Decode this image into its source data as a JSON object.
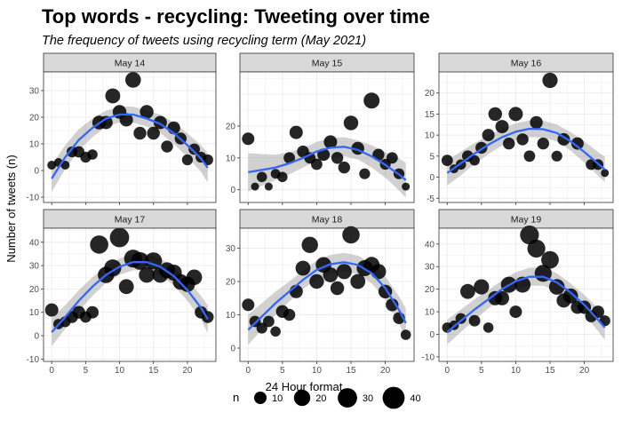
{
  "chart_data": {
    "type": "scatter",
    "title": "Top words - recycling: Tweeting over time",
    "subtitle": "The frequency of tweets using recycling term (May 2021)",
    "xlabel": "24 Hour format",
    "ylabel": "Number of tweets (n)",
    "x_ticks": [
      0,
      5,
      10,
      15,
      20
    ],
    "xlim": [
      -1.2,
      24.2
    ],
    "grid": true,
    "smooth": "loess fit with grey confidence band (blue line)",
    "colors": {
      "points": "#000000",
      "smooth_line": "#3366FF",
      "ribbon": "#999999",
      "strip_bg": "#D9D9D9",
      "grid": "#EBEBEB"
    },
    "legend": {
      "title": "n",
      "position": "bottom",
      "entries": [
        {
          "label": "10",
          "value": 10
        },
        {
          "label": "20",
          "value": 20
        },
        {
          "label": "30",
          "value": 30
        },
        {
          "label": "40",
          "value": 40
        }
      ]
    },
    "panels": [
      {
        "label": "May 14",
        "ylim": [
          -12,
          37
        ],
        "y_ticks": [
          -10,
          0,
          10,
          20,
          30
        ],
        "points": [
          [
            0,
            2
          ],
          [
            1,
            3
          ],
          [
            2,
            2
          ],
          [
            3,
            7
          ],
          [
            4,
            7
          ],
          [
            5,
            5
          ],
          [
            6,
            6
          ],
          [
            7,
            18
          ],
          [
            8,
            18
          ],
          [
            9,
            28
          ],
          [
            10,
            22
          ],
          [
            11,
            19
          ],
          [
            12,
            34
          ],
          [
            13,
            14
          ],
          [
            14,
            22
          ],
          [
            15,
            14
          ],
          [
            16,
            18
          ],
          [
            17,
            9
          ],
          [
            18,
            16
          ],
          [
            19,
            12
          ],
          [
            20,
            4
          ],
          [
            21,
            8
          ],
          [
            22,
            5
          ],
          [
            23,
            4
          ]
        ],
        "smooth": [
          [
            0,
            -3
          ],
          [
            2,
            5
          ],
          [
            4,
            11.5
          ],
          [
            6,
            16
          ],
          [
            8,
            19.5
          ],
          [
            10,
            21
          ],
          [
            12,
            21
          ],
          [
            14,
            19.5
          ],
          [
            16,
            17.5
          ],
          [
            18,
            14
          ],
          [
            20,
            9.5
          ],
          [
            22,
            4.5
          ],
          [
            23,
            1
          ]
        ],
        "band_width": [
          5,
          4.5,
          4,
          3.5,
          3,
          3,
          3,
          3,
          3.5,
          4,
          4.5,
          5,
          5.5
        ]
      },
      {
        "label": "May 15",
        "ylim": [
          -4,
          37
        ],
        "y_ticks": [
          0,
          10,
          20
        ],
        "points": [
          [
            0,
            16
          ],
          [
            1,
            1
          ],
          [
            2,
            4
          ],
          [
            3,
            1
          ],
          [
            4,
            5
          ],
          [
            5,
            4
          ],
          [
            6,
            10
          ],
          [
            7,
            18
          ],
          [
            8,
            12
          ],
          [
            9,
            10
          ],
          [
            10,
            8
          ],
          [
            11,
            11
          ],
          [
            12,
            15
          ],
          [
            13,
            10
          ],
          [
            14,
            7
          ],
          [
            15,
            21
          ],
          [
            16,
            13
          ],
          [
            17,
            5
          ],
          [
            18,
            28
          ],
          [
            19,
            11
          ],
          [
            20,
            8
          ],
          [
            21,
            10
          ],
          [
            22,
            5
          ],
          [
            23,
            1
          ]
        ],
        "smooth": [
          [
            0,
            5.5
          ],
          [
            2,
            6.2
          ],
          [
            4,
            7
          ],
          [
            6,
            8.3
          ],
          [
            8,
            10
          ],
          [
            10,
            12
          ],
          [
            12,
            13.2
          ],
          [
            14,
            13.5
          ],
          [
            16,
            12.5
          ],
          [
            18,
            10.5
          ],
          [
            20,
            7.8
          ],
          [
            22,
            4.8
          ],
          [
            23,
            3
          ]
        ],
        "band_width": [
          6,
          5,
          4,
          3.5,
          3,
          3,
          3,
          3,
          3,
          3.5,
          4,
          5,
          5.5
        ]
      },
      {
        "label": "May 16",
        "ylim": [
          -6,
          25
        ],
        "y_ticks": [
          -5,
          0,
          5,
          10,
          15,
          20
        ],
        "points": [
          [
            0,
            4
          ],
          [
            1,
            2
          ],
          [
            2,
            3
          ],
          [
            3,
            5
          ],
          [
            4,
            4
          ],
          [
            5,
            7
          ],
          [
            6,
            10
          ],
          [
            7,
            15
          ],
          [
            8,
            12
          ],
          [
            9,
            8
          ],
          [
            10,
            15
          ],
          [
            11,
            9
          ],
          [
            12,
            5
          ],
          [
            13,
            13
          ],
          [
            14,
            8
          ],
          [
            15,
            23
          ],
          [
            16,
            5
          ],
          [
            17,
            9
          ],
          [
            19,
            8
          ],
          [
            21,
            3
          ],
          [
            22,
            3
          ],
          [
            23,
            1
          ]
        ],
        "smooth": [
          [
            0,
            1
          ],
          [
            2,
            3.3
          ],
          [
            4,
            5.6
          ],
          [
            6,
            7.7
          ],
          [
            8,
            9.5
          ],
          [
            10,
            10.8
          ],
          [
            12,
            11.5
          ],
          [
            14,
            11.4
          ],
          [
            16,
            10.5
          ],
          [
            18,
            8.5
          ],
          [
            20,
            6
          ],
          [
            22,
            3.2
          ],
          [
            23,
            1.8
          ]
        ],
        "band_width": [
          3,
          2.8,
          2.5,
          2.2,
          2,
          2,
          2,
          2,
          2,
          2.2,
          2.5,
          2.8,
          3
        ]
      },
      {
        "label": "May 17",
        "ylim": [
          -11,
          46
        ],
        "y_ticks": [
          -10,
          0,
          10,
          20,
          30,
          40
        ],
        "points": [
          [
            0,
            11
          ],
          [
            1,
            5
          ],
          [
            2,
            6
          ],
          [
            3,
            8
          ],
          [
            4,
            10
          ],
          [
            5,
            8
          ],
          [
            6,
            10
          ],
          [
            7,
            39
          ],
          [
            8,
            26
          ],
          [
            9,
            29
          ],
          [
            10,
            42
          ],
          [
            11,
            21
          ],
          [
            12,
            33
          ],
          [
            13,
            32
          ],
          [
            14,
            26
          ],
          [
            15,
            32
          ],
          [
            16,
            26
          ],
          [
            17,
            28
          ],
          [
            18,
            27
          ],
          [
            19,
            23
          ],
          [
            20,
            22
          ],
          [
            21,
            25
          ],
          [
            22,
            10
          ],
          [
            23,
            8
          ]
        ],
        "smooth": [
          [
            0,
            1.5
          ],
          [
            2,
            8
          ],
          [
            4,
            15
          ],
          [
            6,
            21
          ],
          [
            8,
            26
          ],
          [
            10,
            29.5
          ],
          [
            12,
            31.5
          ],
          [
            14,
            31.5
          ],
          [
            16,
            29.5
          ],
          [
            18,
            25.5
          ],
          [
            20,
            19.5
          ],
          [
            22,
            12
          ],
          [
            23,
            7
          ]
        ],
        "band_width": [
          6,
          5,
          4.5,
          4,
          3.5,
          3.5,
          3.5,
          3.5,
          3.5,
          4,
          4.5,
          5,
          6
        ]
      },
      {
        "label": "May 18",
        "ylim": [
          -4,
          36
        ],
        "y_ticks": [
          0,
          10,
          20,
          30
        ],
        "points": [
          [
            0,
            13
          ],
          [
            1,
            8
          ],
          [
            2,
            6
          ],
          [
            3,
            8
          ],
          [
            4,
            5
          ],
          [
            5,
            11
          ],
          [
            6,
            10
          ],
          [
            7,
            17
          ],
          [
            8,
            24
          ],
          [
            9,
            31
          ],
          [
            10,
            20
          ],
          [
            11,
            25
          ],
          [
            12,
            22
          ],
          [
            13,
            18
          ],
          [
            14,
            23
          ],
          [
            15,
            34
          ],
          [
            16,
            20
          ],
          [
            17,
            24
          ],
          [
            18,
            25
          ],
          [
            19,
            23
          ],
          [
            20,
            17
          ],
          [
            21,
            13
          ],
          [
            22,
            9
          ],
          [
            23,
            4
          ]
        ],
        "smooth": [
          [
            0,
            5.5
          ],
          [
            2,
            9.5
          ],
          [
            4,
            13.5
          ],
          [
            6,
            17
          ],
          [
            8,
            20.5
          ],
          [
            10,
            23.5
          ],
          [
            12,
            25.2
          ],
          [
            14,
            25.8
          ],
          [
            16,
            25
          ],
          [
            18,
            22.5
          ],
          [
            20,
            18
          ],
          [
            22,
            11.5
          ],
          [
            23,
            7.5
          ]
        ],
        "band_width": [
          4.5,
          4,
          3.5,
          3,
          2.8,
          2.8,
          2.8,
          2.8,
          2.8,
          3,
          3.5,
          4,
          4.5
        ]
      },
      {
        "label": "May 19",
        "ylim": [
          -12,
          47
        ],
        "y_ticks": [
          -10,
          0,
          10,
          20,
          30,
          40
        ],
        "points": [
          [
            0,
            3
          ],
          [
            1,
            4
          ],
          [
            2,
            7
          ],
          [
            3,
            19
          ],
          [
            4,
            6
          ],
          [
            5,
            21
          ],
          [
            6,
            3
          ],
          [
            7,
            16
          ],
          [
            8,
            16
          ],
          [
            9,
            22
          ],
          [
            10,
            10
          ],
          [
            11,
            22
          ],
          [
            12,
            44
          ],
          [
            13,
            38
          ],
          [
            14,
            27
          ],
          [
            15,
            33
          ],
          [
            16,
            21
          ],
          [
            17,
            15
          ],
          [
            18,
            17
          ],
          [
            19,
            12
          ],
          [
            20,
            12
          ],
          [
            21,
            8
          ],
          [
            22,
            10
          ],
          [
            23,
            6
          ]
        ],
        "smooth": [
          [
            0,
            1
          ],
          [
            2,
            6
          ],
          [
            4,
            11
          ],
          [
            6,
            15.5
          ],
          [
            8,
            20
          ],
          [
            10,
            23.5
          ],
          [
            12,
            25.5
          ],
          [
            14,
            25.5
          ],
          [
            16,
            23
          ],
          [
            18,
            18.5
          ],
          [
            20,
            13
          ],
          [
            22,
            6.5
          ],
          [
            23,
            3
          ]
        ],
        "band_width": [
          5.5,
          5,
          4.5,
          4,
          4,
          4,
          4,
          4,
          4,
          4,
          4.5,
          5,
          5.5
        ]
      }
    ],
    "point_sizes": {
      "May 14": [
        4,
        4,
        4,
        7,
        8,
        7,
        6,
        13,
        12,
        16,
        13,
        12,
        18,
        11,
        13,
        11,
        12,
        9,
        11,
        9,
        7,
        8,
        7,
        7
      ],
      "May 15": [
        10,
        3,
        6,
        3,
        5,
        6,
        8,
        12,
        9,
        8,
        8,
        10,
        12,
        9,
        9,
        15,
        11,
        7,
        19,
        9,
        7,
        8,
        7,
        3
      ],
      "May 16": [
        8,
        4,
        6,
        8,
        6,
        9,
        10,
        13,
        12,
        9,
        14,
        9,
        8,
        11,
        9,
        17,
        7,
        10,
        10,
        7,
        7,
        3
      ],
      "May 17": [
        12,
        6,
        7,
        9,
        11,
        8,
        10,
        26,
        20,
        22,
        30,
        16,
        25,
        24,
        18,
        22,
        18,
        19,
        19,
        18,
        17,
        18,
        10,
        9
      ],
      "May 18": [
        10,
        8,
        7,
        8,
        6,
        11,
        9,
        12,
        16,
        20,
        15,
        18,
        16,
        13,
        17,
        23,
        16,
        19,
        19,
        17,
        13,
        11,
        9,
        6
      ],
      "May 19": [
        6,
        5,
        7,
        16,
        8,
        17,
        6,
        14,
        14,
        19,
        10,
        19,
        28,
        25,
        22,
        24,
        18,
        14,
        16,
        12,
        12,
        9,
        10,
        7
      ]
    }
  }
}
